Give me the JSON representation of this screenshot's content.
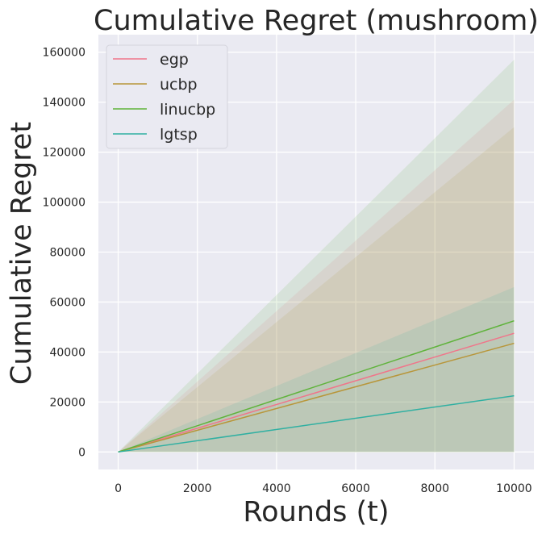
{
  "chart_data": {
    "type": "line",
    "title": "Cumulative Regret (mushroom)",
    "xlabel": "Rounds (t)",
    "ylabel": "Cumulative Regret",
    "xlim": [
      -500,
      10500
    ],
    "ylim": [
      -7000,
      167000
    ],
    "xticks": [
      0,
      2000,
      4000,
      6000,
      8000,
      10000
    ],
    "yticks": [
      0,
      20000,
      40000,
      60000,
      80000,
      100000,
      120000,
      140000,
      160000
    ],
    "x": [
      0,
      10000
    ],
    "grid": true,
    "legend_position": "top-left",
    "series": [
      {
        "name": "egp",
        "color": "#f0758a",
        "values": [
          0,
          47500
        ],
        "band_upper": [
          0,
          141000
        ],
        "band_lower": [
          0,
          0
        ]
      },
      {
        "name": "ucbp",
        "color": "#b8963a",
        "values": [
          0,
          43500
        ],
        "band_upper": [
          0,
          130000
        ],
        "band_lower": [
          0,
          0
        ]
      },
      {
        "name": "linucbp",
        "color": "#5fb33b",
        "values": [
          0,
          52500
        ],
        "band_upper": [
          0,
          157000
        ],
        "band_lower": [
          0,
          0
        ]
      },
      {
        "name": "lgtsp",
        "color": "#30b0a2",
        "values": [
          0,
          22500
        ],
        "band_upper": [
          0,
          66000
        ],
        "band_lower": [
          0,
          0
        ]
      }
    ]
  }
}
